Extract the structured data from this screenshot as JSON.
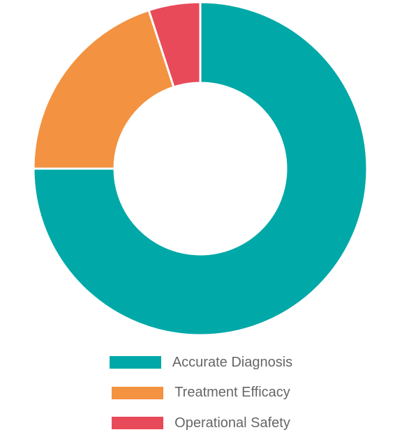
{
  "chart_data": {
    "type": "donut",
    "categories": [
      "Accurate Diagnosis",
      "Treatment Efficacy",
      "Operational Safety"
    ],
    "values": [
      75,
      20,
      5
    ],
    "colors": [
      "#00a8a8",
      "#f39240",
      "#e84a5a"
    ],
    "legend": "bottom"
  }
}
